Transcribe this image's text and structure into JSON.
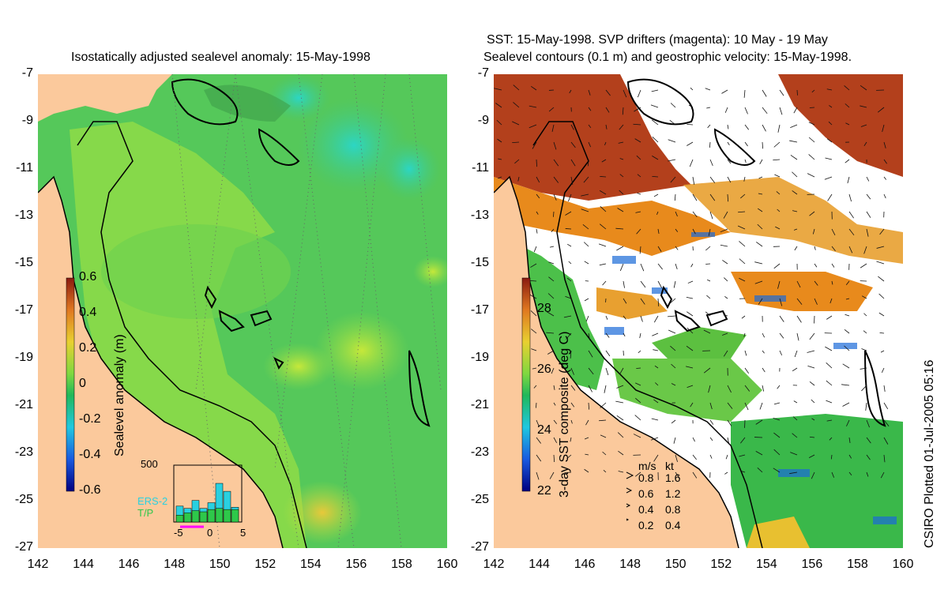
{
  "left_panel": {
    "title": "Isostatically adjusted sealevel anomaly: 15-May-1998",
    "y_ticks": [
      "-7",
      "-9",
      "-11",
      "-13",
      "-15",
      "-17",
      "-19",
      "-21",
      "-23",
      "-25",
      "-27"
    ],
    "x_ticks": [
      "142",
      "144",
      "146",
      "148",
      "150",
      "152",
      "154",
      "156",
      "158",
      "160"
    ],
    "colorbar": {
      "label": "Sealevel anomaly (m)",
      "ticks": [
        "0.6",
        "0.4",
        "0.2",
        "0",
        "-0.2",
        "-0.4",
        "-0.6"
      ]
    },
    "inset": {
      "max_label": "500",
      "ers_label": "ERS-2",
      "tp_label": "T/P",
      "x_ticks": [
        "-5",
        "0",
        "5"
      ],
      "ers_values": [
        140,
        120,
        190,
        120,
        170,
        340,
        270,
        130
      ],
      "tp_values": [
        60,
        80,
        100,
        90,
        110,
        120,
        110,
        110
      ]
    }
  },
  "right_panel": {
    "title_line1": "SST: 15-May-1998. SVP drifters (magenta): 10 May - 19 May",
    "title_line2": "Sealevel contours (0.1 m) and geostrophic velocity: 15-May-1998.",
    "y_ticks": [
      "-7",
      "-9",
      "-11",
      "-13",
      "-15",
      "-17",
      "-19",
      "-21",
      "-23",
      "-25",
      "-27"
    ],
    "x_ticks": [
      "142",
      "144",
      "146",
      "148",
      "150",
      "152",
      "154",
      "156",
      "158",
      "160"
    ],
    "colorbar": {
      "label": "3-day SST composite (deg C)",
      "ticks": [
        "28",
        "26",
        "24",
        "22"
      ]
    },
    "velocity_legend": {
      "header_ms": "m/s",
      "header_kt": "kt",
      "rows": [
        {
          "ms": "0.8",
          "kt": "1.6"
        },
        {
          "ms": "0.6",
          "kt": "1.2"
        },
        {
          "ms": "0.4",
          "kt": "0.8"
        },
        {
          "ms": "0.2",
          "kt": "0.4"
        }
      ]
    }
  },
  "credit": "CSIRO Plotted 01-Jul-2005 05:16",
  "colors": {
    "land": "#fbc99c",
    "sla_green": "#4fc84a",
    "sla_light": "#9be24a",
    "sla_cyan": "#2fd4b8",
    "sst_red": "#b3401c",
    "sst_orange": "#e88a1c",
    "sst_green": "#3ab84a",
    "sst_blue": "#1a6ad8"
  }
}
